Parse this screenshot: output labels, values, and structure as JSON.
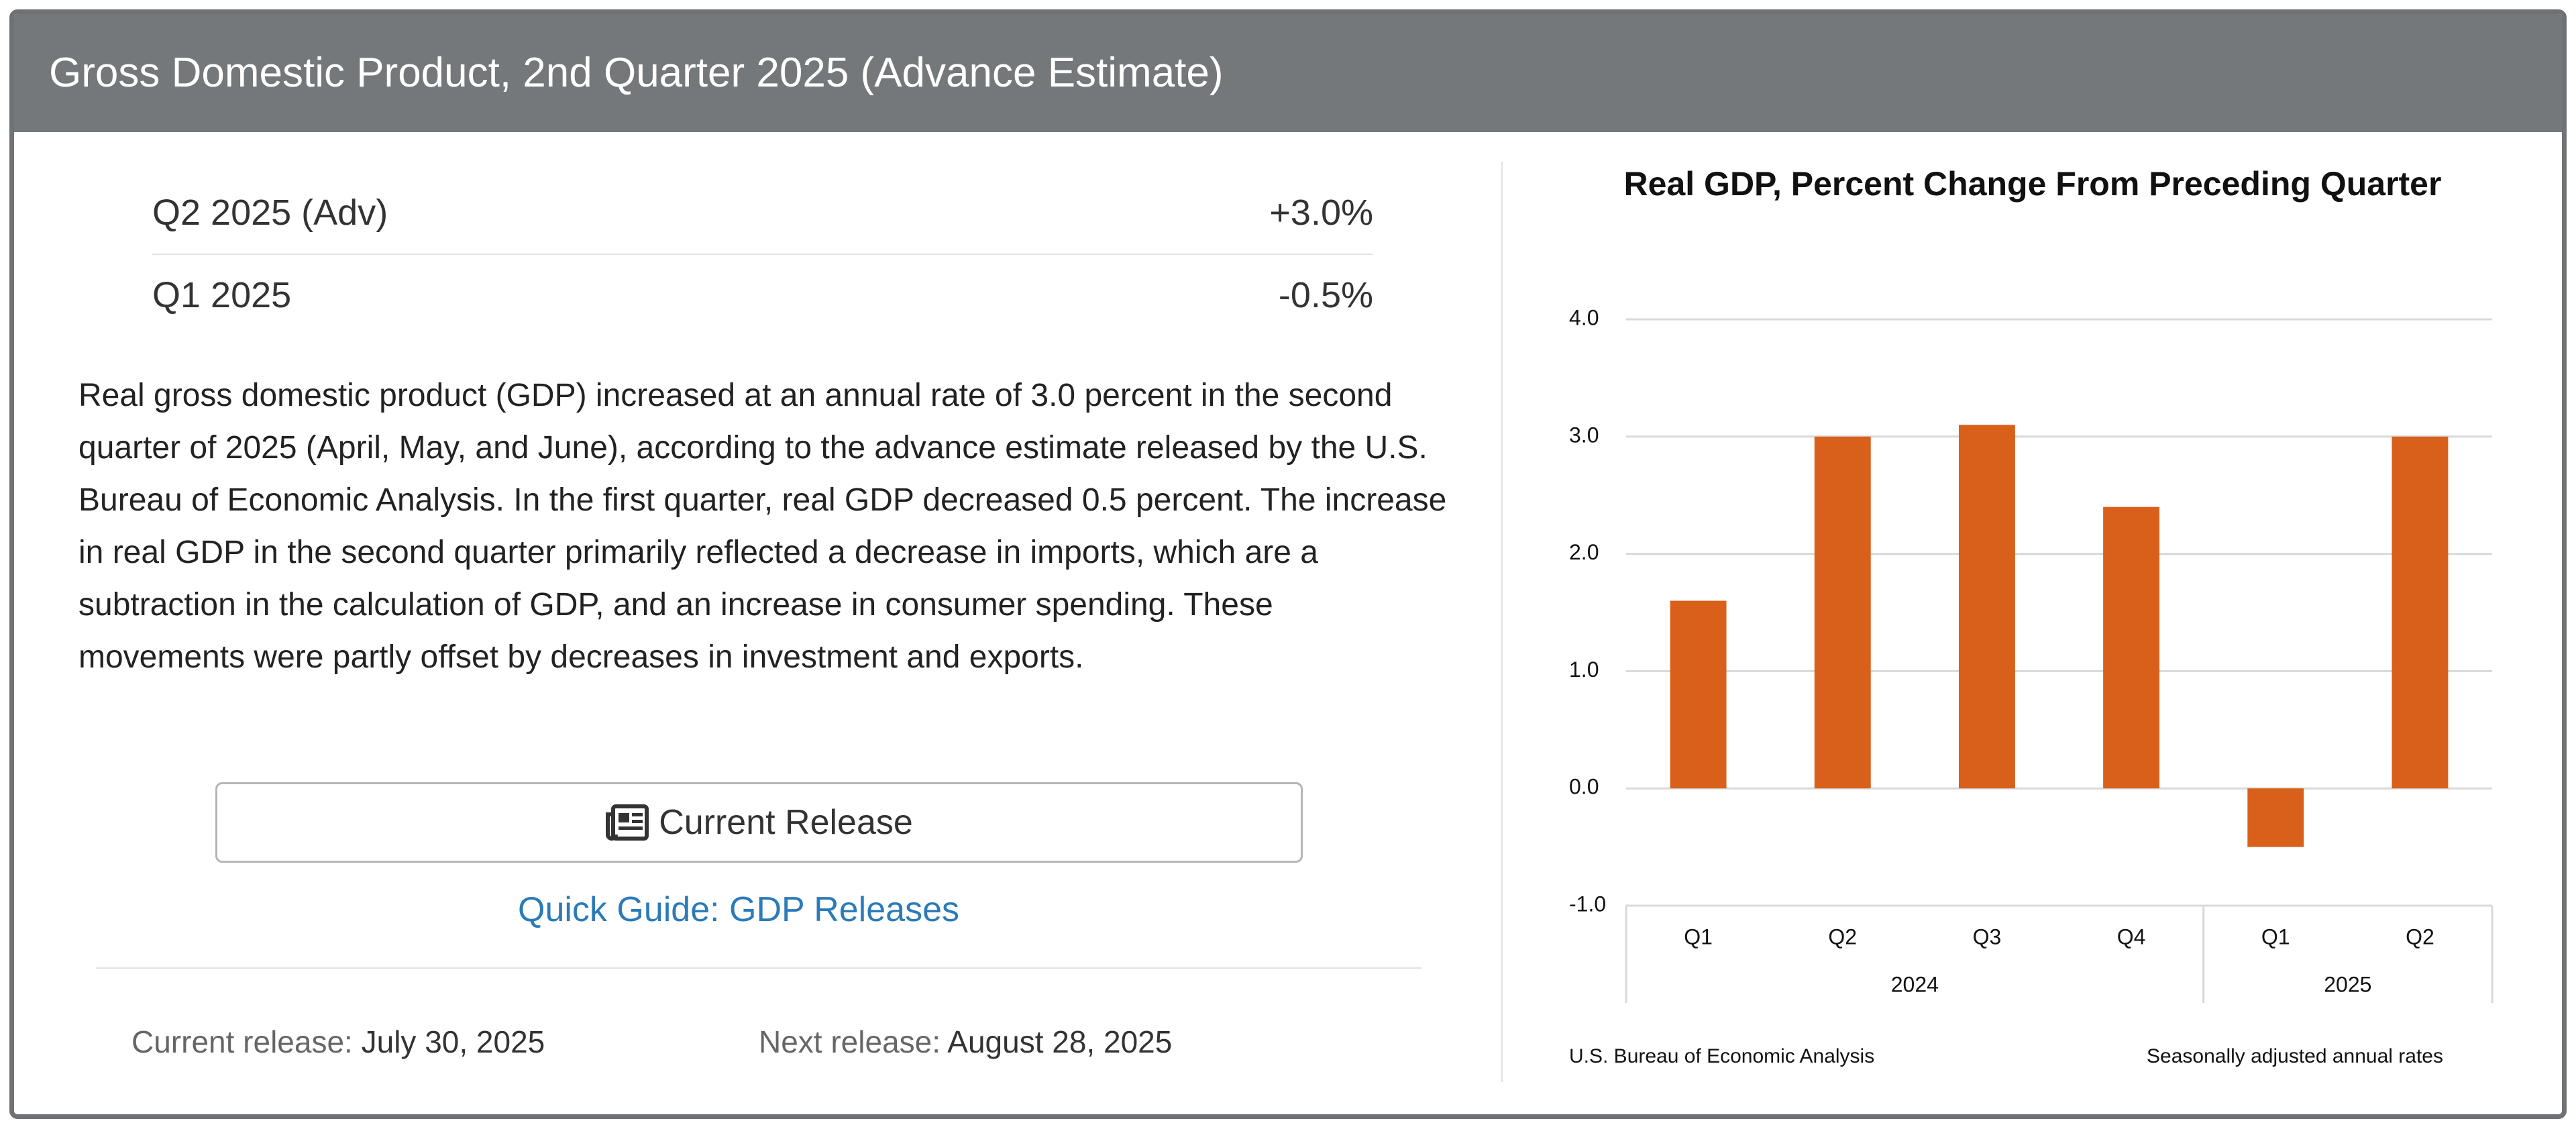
{
  "header": {
    "title": "Gross Domestic Product, 2nd Quarter 2025 (Advance Estimate)"
  },
  "stats": [
    {
      "label": "Q2 2025 (Adv)",
      "value": "+3.0%"
    },
    {
      "label": "Q1 2025",
      "value": "-0.5%"
    }
  ],
  "summary": "Real gross domestic product (GDP) increased at an annual rate of 3.0 percent in the second quarter of 2025 (April, May, and June), according to the advance estimate released by the U.S. Bureau of Economic Analysis. In the first quarter, real GDP decreased 0.5 percent. The increase in real GDP in the second quarter primarily reflected a decrease in imports, which are a subtraction in the calculation of GDP, and an increase in consumer spending. These movements were partly offset by decreases in investment and exports.",
  "button": "Current Release",
  "link": "Quick Guide: GDP Releases",
  "releases": [
    {
      "label": "Current release:",
      "date": "July 30, 2025"
    },
    {
      "label": "Next release:",
      "date": "August 28, 2025"
    }
  ],
  "chart_data": {
    "type": "bar",
    "title": "Real GDP, Percent Change From Preceding Quarter",
    "groups": [
      {
        "name": "2024",
        "categories": [
          "Q1",
          "Q2",
          "Q3",
          "Q4"
        ],
        "values": [
          1.6,
          3.0,
          3.1,
          2.4
        ]
      },
      {
        "name": "2025",
        "categories": [
          "Q1",
          "Q2"
        ],
        "values": [
          -0.5,
          3.0
        ]
      }
    ],
    "color": "#d9601a",
    "ylim": [
      -1,
      4
    ],
    "yticks": [
      {
        "value": -1,
        "label": "-1.0"
      },
      {
        "value": 0,
        "label": "0.0"
      },
      {
        "value": 1,
        "label": "1.0"
      },
      {
        "value": 2,
        "label": "2.0"
      },
      {
        "value": 3,
        "label": "3.0"
      },
      {
        "value": 4,
        "label": "4.0"
      }
    ],
    "grid": true,
    "source": "U.S. Bureau of Economic Analysis",
    "note": "Seasonally adjusted annual rates"
  }
}
